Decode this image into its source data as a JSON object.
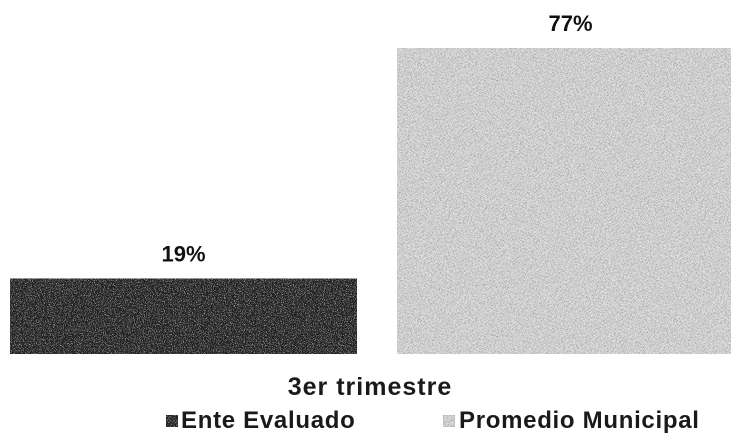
{
  "chart_data": {
    "type": "bar",
    "categories": [
      "3er trimestre"
    ],
    "series": [
      {
        "name": "Ente Evaluado",
        "values": [
          19
        ],
        "labels": [
          "19%"
        ],
        "color": "#242424"
      },
      {
        "name": "Promedio Municipal",
        "values": [
          77
        ],
        "labels": [
          "77%"
        ],
        "color": "#e4e4e4"
      }
    ],
    "legend_position": "bottom",
    "grid": false,
    "axes_visible": false
  }
}
